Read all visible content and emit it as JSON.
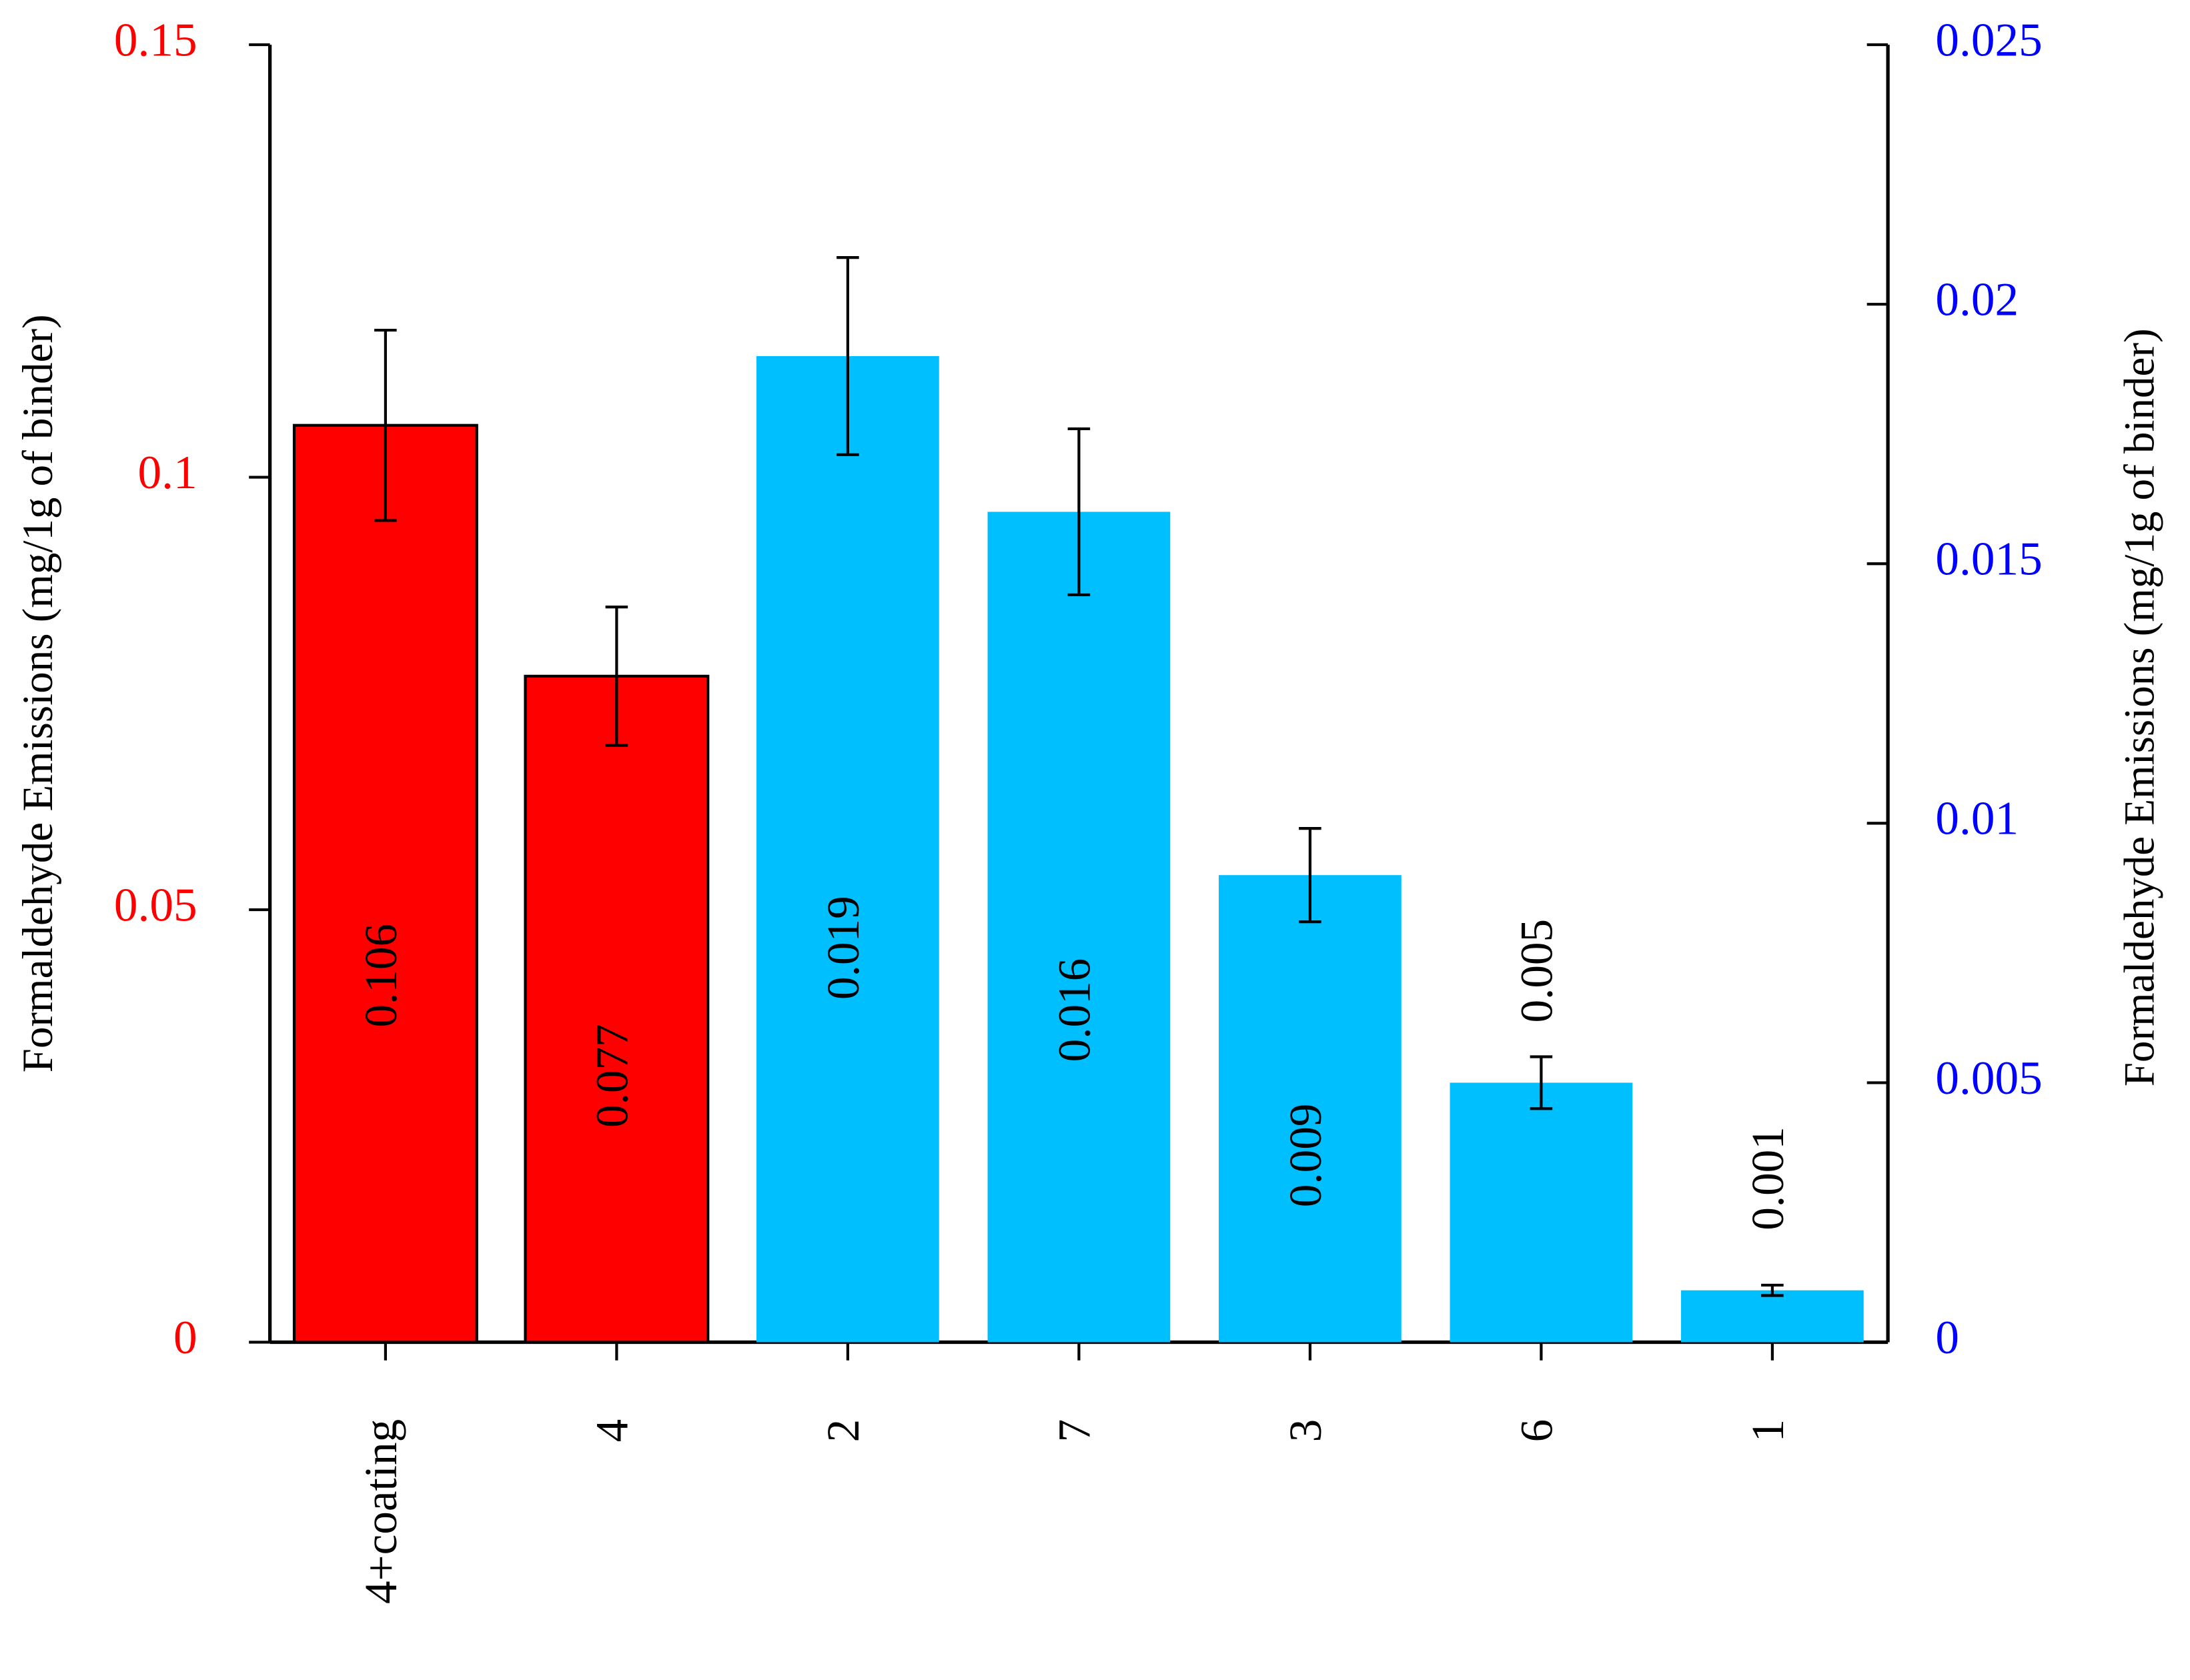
{
  "chart_data": {
    "type": "bar",
    "y_label": "Formaldehyde Emissions (mg/1g of binder)",
    "y2_label": "Formaldehyde Emissions (mg/1g of binder)",
    "categories": [
      "4+coating",
      "4",
      "2",
      "7",
      "3",
      "6",
      "1"
    ],
    "series": [
      {
        "name": "red",
        "color": "#ff0000",
        "axis": "y",
        "values": [
          0.106,
          0.077,
          null,
          null,
          null,
          null,
          null
        ],
        "errors": [
          0.011,
          0.008,
          null,
          null,
          null,
          null,
          null
        ]
      },
      {
        "name": "blue",
        "color": "#00bfff",
        "axis": "y2",
        "values": [
          null,
          null,
          0.019,
          0.016,
          0.009,
          0.005,
          0.001
        ],
        "errors": [
          null,
          null,
          0.0019,
          0.0016,
          0.0009,
          0.0005,
          0.0001
        ]
      }
    ],
    "ylim": [
      0,
      0.15
    ],
    "yticks": [
      0,
      0.05,
      0.1,
      0.15
    ],
    "y2lim": [
      0,
      0.025
    ],
    "y2ticks": [
      0,
      0.005,
      0.01,
      0.015,
      0.02,
      0.025
    ],
    "y_color": "#ff0000",
    "y2_color": "#0000ff"
  }
}
